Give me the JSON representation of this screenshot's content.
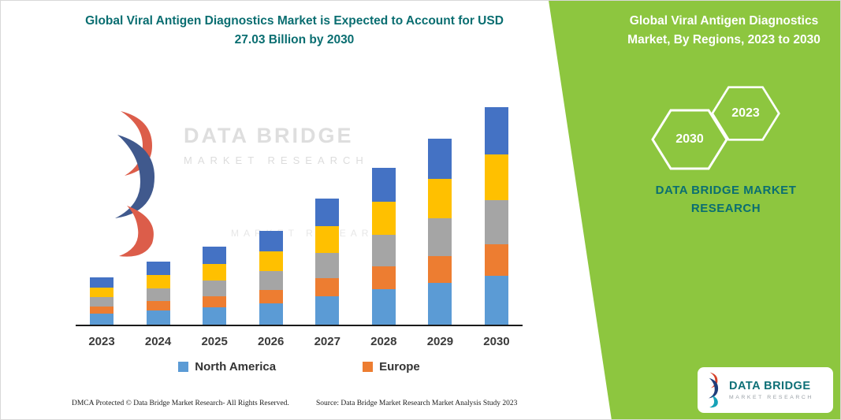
{
  "left": {
    "title": "Global Viral Antigen Diagnostics Market is Expected to Account for USD 27.03 Billion by 2030"
  },
  "right": {
    "heading": "Global Viral Antigen Diagnostics Market, By Regions, 2023 to 2030",
    "hexagons": [
      {
        "label": "2030"
      },
      {
        "label": "2023"
      }
    ],
    "caption": "DATA BRIDGE MARKET RESEARCH"
  },
  "watermark": {
    "line1": "DATA BRIDGE",
    "line2": "MARKET  RESEARCH",
    "line3": "MARKET  RESEARCH"
  },
  "logo": {
    "title": "DATA BRIDGE",
    "subtitle": "MARKET RESEARCH"
  },
  "footer": {
    "dmca": "DMCA Protected © Data Bridge Market Research-  All Rights Reserved.",
    "source": "Source: Data Bridge Market Research  Market Analysis Study 2023"
  },
  "colors": {
    "green": "#8DC63F",
    "teal": "#0A6E71",
    "north_america": "#5B9BD5",
    "europe": "#ED7D31",
    "gray_series": "#A5A5A5",
    "yellow_series": "#FFC000",
    "dark_blue_series": "#4472C4"
  },
  "chart_data": {
    "type": "bar",
    "stacked": true,
    "title": "Global Viral Antigen Diagnostics Market is Expected to Account for USD 27.03 Billion by 2030",
    "xlabel": "",
    "ylabel": "",
    "units": "USD billion (estimated from bar heights; 2030 total = 27.03)",
    "ylim": [
      0,
      28
    ],
    "grid": false,
    "legend_position": "bottom",
    "categories": [
      "2023",
      "2024",
      "2025",
      "2026",
      "2027",
      "2028",
      "2029",
      "2030"
    ],
    "series": [
      {
        "name": "North America",
        "color": "#5B9BD5",
        "in_legend": true,
        "values": [
          1.37,
          1.76,
          2.15,
          2.64,
          3.53,
          4.41,
          5.19,
          6.07
        ]
      },
      {
        "name": "Europe",
        "color": "#ED7D31",
        "in_legend": true,
        "values": [
          0.88,
          1.18,
          1.37,
          1.66,
          2.25,
          2.84,
          3.33,
          3.92
        ]
      },
      {
        "name": "Unlabeled (gray)",
        "color": "#A5A5A5",
        "in_legend": false,
        "values": [
          1.18,
          1.57,
          1.96,
          2.35,
          3.13,
          3.92,
          4.7,
          5.48
        ]
      },
      {
        "name": "Unlabeled (yellow)",
        "color": "#FFC000",
        "in_legend": false,
        "values": [
          1.18,
          1.66,
          2.06,
          2.45,
          3.33,
          4.11,
          4.9,
          5.68
        ]
      },
      {
        "name": "Unlabeled (dark blue)",
        "color": "#4472C4",
        "in_legend": false,
        "values": [
          1.27,
          1.66,
          2.15,
          2.55,
          3.43,
          4.21,
          4.99,
          5.88
        ]
      }
    ],
    "totals": [
      5.88,
      7.83,
      9.69,
      11.65,
      15.67,
      19.49,
      23.11,
      27.03
    ]
  }
}
